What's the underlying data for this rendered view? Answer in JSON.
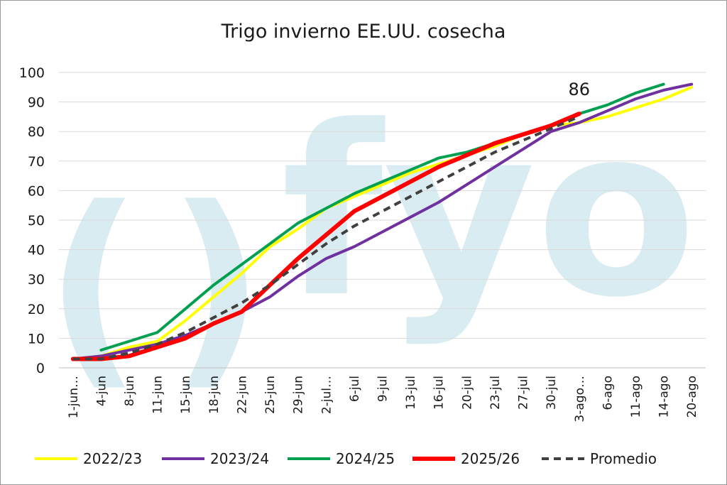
{
  "chart_data": {
    "type": "line",
    "title": "Trigo invierno EE.UU. cosecha",
    "watermark": "fyo",
    "categories": [
      "1-jun…",
      "4-jun",
      "8-jun",
      "11-jun",
      "15-jun",
      "18-jun",
      "22-jun",
      "25-jun",
      "29-jun",
      "2-jul…",
      "6-jul",
      "9-jul",
      "13-jul",
      "16-jul",
      "20-jul",
      "23-jul",
      "27-jul",
      "30-jul",
      "3-ago…",
      "6-ago",
      "11-ago",
      "14-ago",
      "20-ago"
    ],
    "ylim": [
      0,
      100
    ],
    "yticks": [
      0,
      10,
      20,
      30,
      40,
      50,
      60,
      70,
      80,
      90,
      100
    ],
    "grid": true,
    "legend_position": "bottom",
    "series": [
      {
        "name": "2022/23",
        "color": "#ffff00",
        "dashed": false,
        "width": 4,
        "values": [
          3,
          4,
          7,
          9,
          16,
          24,
          32,
          41,
          47,
          54,
          58,
          62,
          66,
          69,
          72,
          75,
          79,
          82,
          83,
          85,
          88,
          91,
          95
        ]
      },
      {
        "name": "2023/24",
        "color": "#7030a0",
        "dashed": false,
        "width": 4,
        "values": [
          3,
          4,
          6,
          8,
          11,
          15,
          19,
          24,
          31,
          37,
          41,
          46,
          51,
          56,
          62,
          68,
          74,
          80,
          83,
          87,
          91,
          94,
          96
        ]
      },
      {
        "name": "2024/25",
        "color": "#00a050",
        "dashed": false,
        "width": 4,
        "values": [
          null,
          6,
          9,
          12,
          20,
          28,
          35,
          42,
          49,
          54,
          59,
          63,
          67,
          71,
          73,
          76,
          79,
          82,
          86,
          89,
          93,
          96,
          null
        ]
      },
      {
        "name": "2025/26",
        "color": "#ff0000",
        "dashed": false,
        "width": 6,
        "values": [
          3,
          3,
          4,
          7,
          10,
          15,
          19,
          28,
          37,
          45,
          53,
          58,
          63,
          68,
          72,
          76,
          79,
          82,
          86,
          null,
          null,
          null,
          null
        ]
      },
      {
        "name": "Promedio",
        "color": "#404040",
        "dashed": true,
        "width": 4,
        "values": [
          3,
          3,
          5,
          8,
          12,
          17,
          22,
          28,
          35,
          42,
          48,
          53,
          58,
          63,
          68,
          73,
          77,
          81,
          85,
          null,
          null,
          null,
          null
        ]
      }
    ],
    "annotations": [
      {
        "text": "86",
        "series": "2025/26",
        "category": "3-ago…",
        "value": 86
      }
    ]
  }
}
